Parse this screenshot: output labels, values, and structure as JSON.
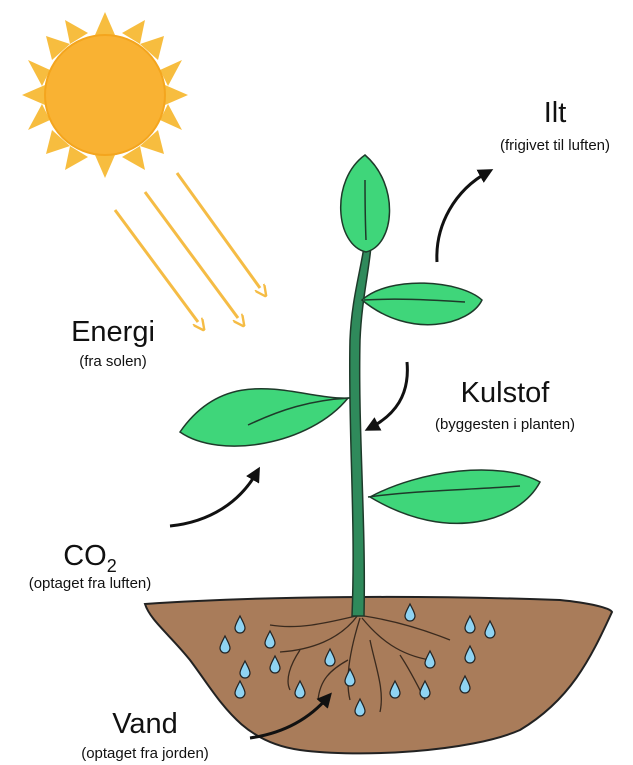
{
  "labels": {
    "oxygen": {
      "title": "Ilt",
      "subtitle": "(frigivet til luften)"
    },
    "energy": {
      "title": "Energi",
      "subtitle": "(fra solen)"
    },
    "carbon": {
      "title": "Kulstof",
      "subtitle": "(byggesten i planten)"
    },
    "co2": {
      "title": "CO",
      "subscript": "2",
      "subtitle": "(optaget fra luften)"
    },
    "water": {
      "title": "Vand",
      "subtitle": "(optaget fra jorden)"
    }
  }
}
